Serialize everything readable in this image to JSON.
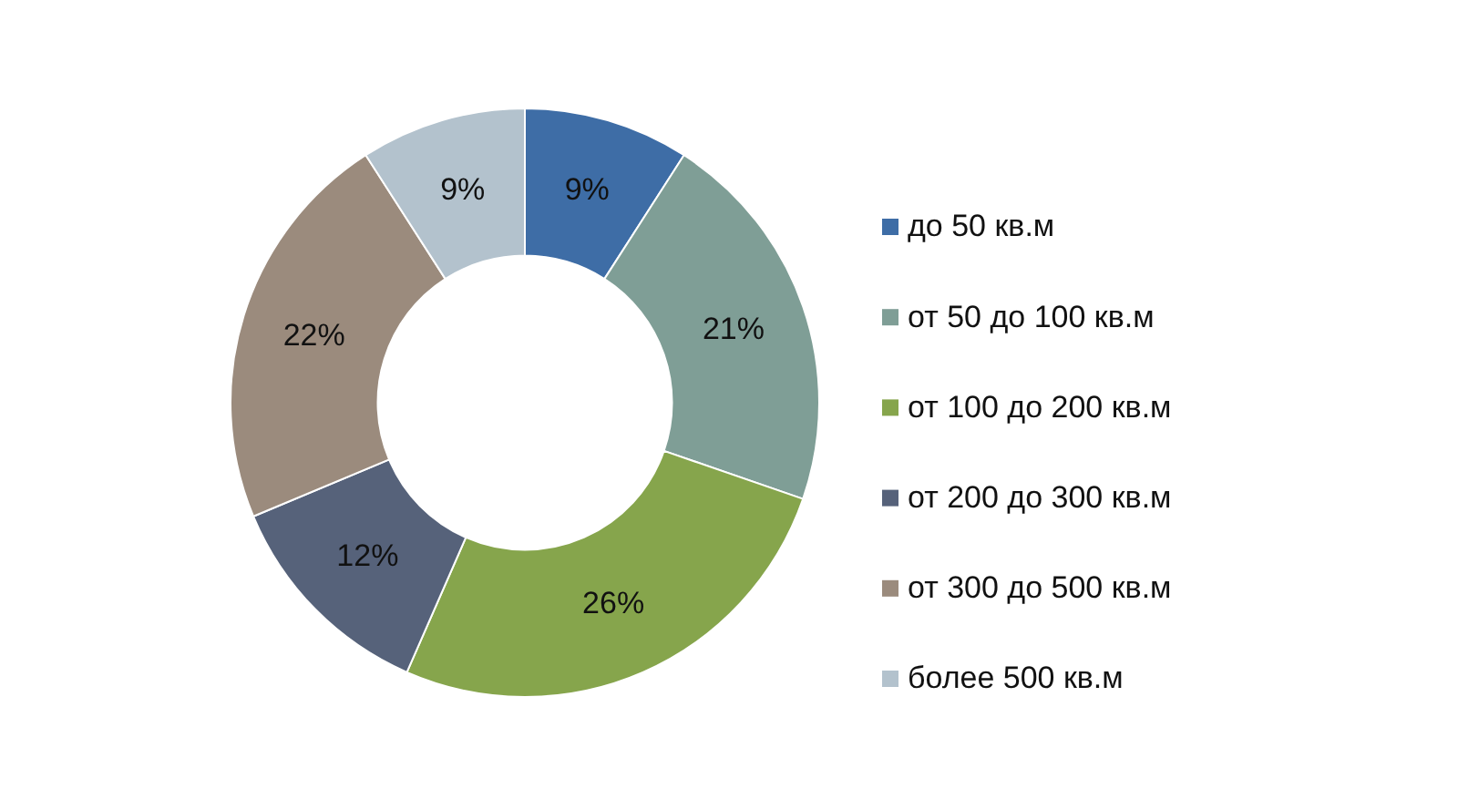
{
  "chart_data": {
    "type": "donut",
    "categories": [
      "до 50 кв.м",
      "от 50 до 100 кв.м",
      "от 100 до 200 кв.м",
      "от 200 до 300 кв.м",
      "от 300 до 500 кв.м",
      "более 500 кв.м"
    ],
    "values": [
      9,
      21,
      26,
      12,
      22,
      9
    ],
    "colors": [
      "#3e6da6",
      "#7f9e96",
      "#86a54c",
      "#56627a",
      "#9b8b7d",
      "#b3c2cd"
    ],
    "value_labels": [
      "9%",
      "21%",
      "26%",
      "12%",
      "22%",
      "9%"
    ],
    "legend": "right"
  }
}
